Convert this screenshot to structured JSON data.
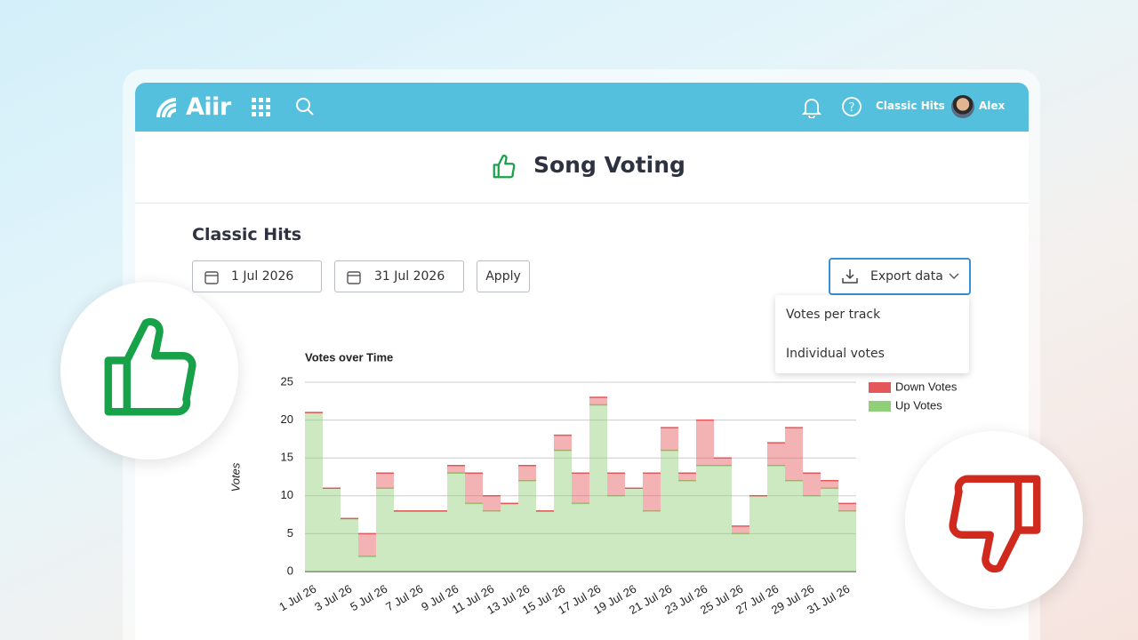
{
  "header": {
    "logo": "Aiir",
    "station": "Classic Hits",
    "user": "Alex"
  },
  "page_title": "Song Voting",
  "section_title": "Classic Hits",
  "filters": {
    "start_date": "1 Jul 2026",
    "end_date": "31 Jul 2026",
    "apply": "Apply"
  },
  "export": {
    "button": "Export data",
    "menu": [
      "Votes per track",
      "Individual votes"
    ]
  },
  "chart_data": {
    "type": "stacked_step_area",
    "title": "Votes over Time",
    "y_label": "Votes",
    "categories": [
      "1 Jul 26",
      null,
      "3 Jul 26",
      null,
      "5 Jul 26",
      null,
      "7 Jul 26",
      null,
      "9 Jul 26",
      null,
      "11 Jul 26",
      null,
      "13 Jul 26",
      null,
      "15 Jul 26",
      null,
      "17 Jul 26",
      null,
      "19 Jul 26",
      null,
      "21 Jul 26",
      null,
      "23 Jul 26",
      null,
      "25 Jul 26",
      null,
      "27 Jul 26",
      null,
      "29 Jul 26",
      null,
      "31 Jul 26"
    ],
    "series": [
      {
        "name": "Down Votes",
        "color": "#e4575b",
        "values": [
          0,
          0,
          0,
          3,
          2,
          0,
          0,
          0,
          1,
          4,
          2,
          0,
          2,
          0,
          2,
          4,
          1,
          3,
          0,
          5,
          3,
          1,
          6,
          1,
          1,
          0,
          3,
          7,
          3,
          1,
          1
        ]
      },
      {
        "name": "Up Votes",
        "color": "#8ecf77",
        "values": [
          21,
          11,
          7,
          2,
          11,
          8,
          8,
          8,
          13,
          9,
          8,
          9,
          12,
          8,
          16,
          9,
          22,
          10,
          11,
          8,
          16,
          12,
          14,
          14,
          5,
          10,
          14,
          12,
          10,
          11,
          8
        ]
      }
    ],
    "ylim": [
      0,
      25
    ],
    "yticks": [
      0,
      5,
      10,
      15,
      20,
      25
    ],
    "grid": true,
    "legend": "top-right"
  }
}
